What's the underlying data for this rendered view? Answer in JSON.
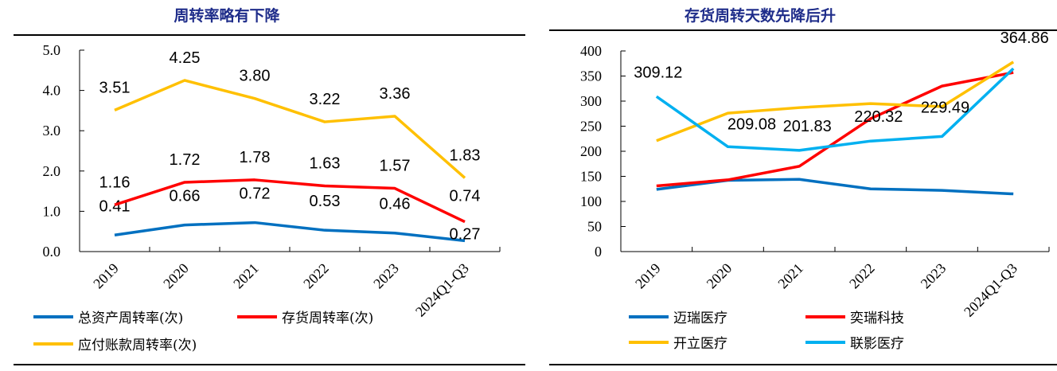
{
  "chart_data": [
    {
      "type": "line",
      "title": "周转率略有下降",
      "categories": [
        "2019",
        "2020",
        "2021",
        "2022",
        "2023",
        "2024Q1-Q3"
      ],
      "ylim": [
        0,
        5
      ],
      "yticks": [
        "0.0",
        "1.0",
        "2.0",
        "3.0",
        "4.0",
        "5.0"
      ],
      "grid": false,
      "legend_position": "bottom",
      "series": [
        {
          "name": "总资产周转率(次)",
          "color": "#0070c0",
          "values": [
            0.41,
            0.66,
            0.72,
            0.53,
            0.46,
            0.27
          ],
          "labels": [
            "0.41",
            "0.66",
            "0.72",
            "0.53",
            "0.46",
            "0.27"
          ]
        },
        {
          "name": "存货周转率(次)",
          "color": "#ff0000",
          "values": [
            1.16,
            1.72,
            1.78,
            1.63,
            1.57,
            0.74
          ],
          "labels": [
            "1.16",
            "1.72",
            "1.78",
            "1.63",
            "1.57",
            "0.74"
          ]
        },
        {
          "name": "应付账款周转率(次)",
          "color": "#ffc000",
          "values": [
            3.51,
            4.25,
            3.8,
            3.22,
            3.36,
            1.83
          ],
          "labels": [
            "3.51",
            "4.25",
            "3.80",
            "3.22",
            "3.36",
            "1.83"
          ]
        }
      ]
    },
    {
      "type": "line",
      "title": "存货周转天数先降后升",
      "categories": [
        "2019",
        "2020",
        "2021",
        "2022",
        "2023",
        "2024Q1-Q3"
      ],
      "ylim": [
        0,
        400
      ],
      "yticks": [
        "0",
        "50",
        "100",
        "150",
        "200",
        "250",
        "300",
        "350",
        "400"
      ],
      "grid": false,
      "legend_position": "bottom",
      "series": [
        {
          "name": "迈瑞医疗",
          "color": "#0070c0",
          "values": [
            124,
            142,
            144,
            125,
            122,
            115
          ]
        },
        {
          "name": "奕瑞科技",
          "color": "#ff0000",
          "values": [
            131,
            143,
            170,
            265,
            330,
            357
          ]
        },
        {
          "name": "开立医疗",
          "color": "#ffc000",
          "values": [
            221,
            276,
            287,
            295,
            289,
            378
          ]
        },
        {
          "name": "联影医疗",
          "color": "#00b0f0",
          "values": [
            309.12,
            209.08,
            201.83,
            220.32,
            229.49,
            364.86
          ],
          "labels": [
            "309.12",
            "209.08",
            "201.83",
            "220.32",
            "229.49",
            "364.86"
          ]
        }
      ]
    }
  ]
}
